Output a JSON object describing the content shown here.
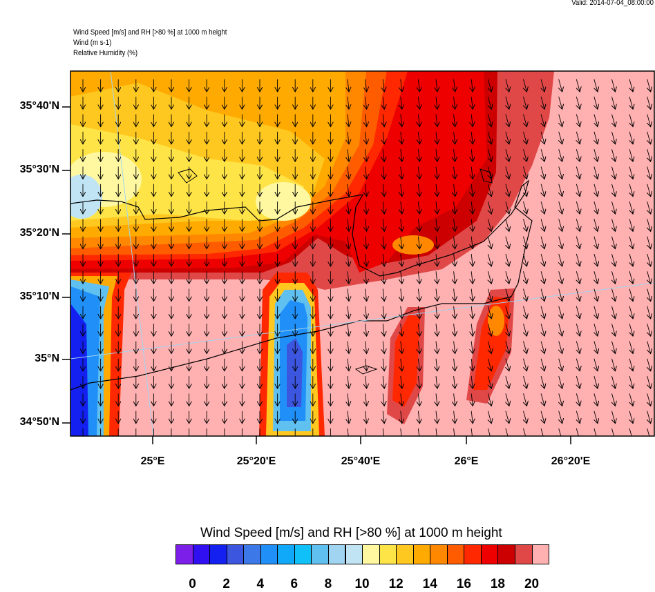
{
  "header": {
    "valid": "Valid: 2014-07-04_08:00:00",
    "line1": "Wind Speed [m/s] and RH [>80 %] at 1000 m height",
    "line2": "Wind   (m s-1)",
    "line3": "Relative Humidity   (%)"
  },
  "axes": {
    "lat_labels": [
      "35°40'N",
      "35°30'N",
      "35°20'N",
      "35°10'N",
      "35°N",
      "34°50'N"
    ],
    "lon_labels": [
      "25°E",
      "25°20'E",
      "25°40'E",
      "26°E",
      "26°20'E"
    ]
  },
  "colorbar": {
    "title": "Wind Speed [m/s] and RH [>80 %] at 1000 m height",
    "labels": [
      "0",
      "2",
      "4",
      "6",
      "8",
      "10",
      "12",
      "14",
      "16",
      "18",
      "20"
    ],
    "colors": [
      "#7c1fe8",
      "#3010f0",
      "#1420f0",
      "#3c56e0",
      "#3c78e8",
      "#2090f8",
      "#10a8f8",
      "#10c0f8",
      "#60c0f0",
      "#a0d4f0",
      "#c0e4f4",
      "#fff8a0",
      "#ffe448",
      "#ffc820",
      "#ffaa00",
      "#ff8800",
      "#ff5c00",
      "#ff2800",
      "#ee0000",
      "#cc0000",
      "#e04848",
      "#ffb0b0"
    ]
  }
}
